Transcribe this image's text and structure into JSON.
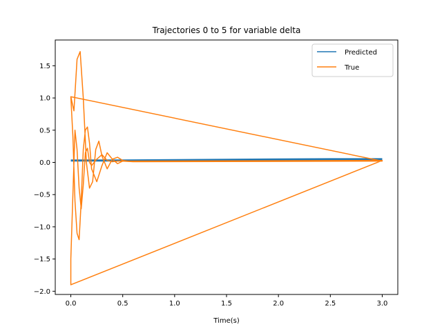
{
  "chart_data": {
    "type": "line",
    "title": "Trajectories 0 to 5 for variable delta",
    "xlabel": "Time(s)",
    "ylabel": "",
    "xlim": [
      -0.15,
      3.15
    ],
    "ylim": [
      -2.05,
      1.9
    ],
    "x_ticks": [
      0.0,
      0.5,
      1.0,
      1.5,
      2.0,
      2.5,
      3.0
    ],
    "x_tick_labels": [
      "0.0",
      "0.5",
      "1.0",
      "1.5",
      "2.0",
      "2.5",
      "3.0"
    ],
    "y_ticks": [
      -2.0,
      -1.5,
      -1.0,
      -0.5,
      0.0,
      0.5,
      1.0,
      1.5
    ],
    "y_tick_labels": [
      "−2.0",
      "−1.5",
      "−1.0",
      "−0.5",
      "0.0",
      "0.5",
      "1.0",
      "1.5"
    ],
    "grid": false,
    "legend_position": "top-right",
    "series": [
      {
        "name": "Predicted",
        "color": "#1f77b4",
        "x": [
          0.0,
          0.5,
          1.0,
          1.5,
          2.0,
          2.5,
          3.0
        ],
        "y": [
          0.03,
          0.03,
          0.035,
          0.04,
          0.045,
          0.05,
          0.05
        ]
      },
      {
        "name": "True",
        "color": "#ff7f0e",
        "x": [
          0.0,
          0.02,
          0.04,
          0.06,
          0.08,
          0.1,
          0.12,
          0.14,
          0.16,
          0.18,
          0.2,
          0.25,
          0.3,
          0.35,
          0.4,
          0.45,
          0.5,
          0.6,
          3.0,
          0.0,
          0.03,
          0.06,
          0.09,
          0.12,
          0.15,
          0.18,
          0.21,
          0.24,
          0.27,
          0.3,
          0.35,
          0.4,
          0.45,
          0.5,
          0.55,
          0.6,
          3.0,
          0.0,
          0.0,
          0.02,
          0.04,
          0.06,
          0.08,
          0.1,
          0.12,
          0.14,
          0.16,
          0.18,
          0.2,
          0.25,
          0.3,
          0.35,
          0.4,
          0.45,
          0.5,
          3.0
        ],
        "y": [
          1.02,
          0.4,
          -0.6,
          -1.1,
          -1.2,
          -0.6,
          0.2,
          0.5,
          0.55,
          0.3,
          -0.1,
          -0.3,
          -0.05,
          0.15,
          0.05,
          -0.02,
          0.02,
          0.01,
          0.02,
          1.02,
          0.8,
          1.6,
          1.72,
          1.0,
          0.0,
          -0.4,
          -0.3,
          0.2,
          0.33,
          0.1,
          -0.1,
          0.05,
          0.08,
          0.03,
          0.02,
          0.02,
          0.03,
          -1.9,
          -1.5,
          -0.5,
          0.5,
          0.2,
          -0.4,
          -0.72,
          -0.35,
          0.15,
          0.22,
          0.0,
          -0.05,
          0.05,
          0.12,
          0.03,
          0.01,
          0.02,
          0.02,
          0.02
        ]
      }
    ]
  }
}
